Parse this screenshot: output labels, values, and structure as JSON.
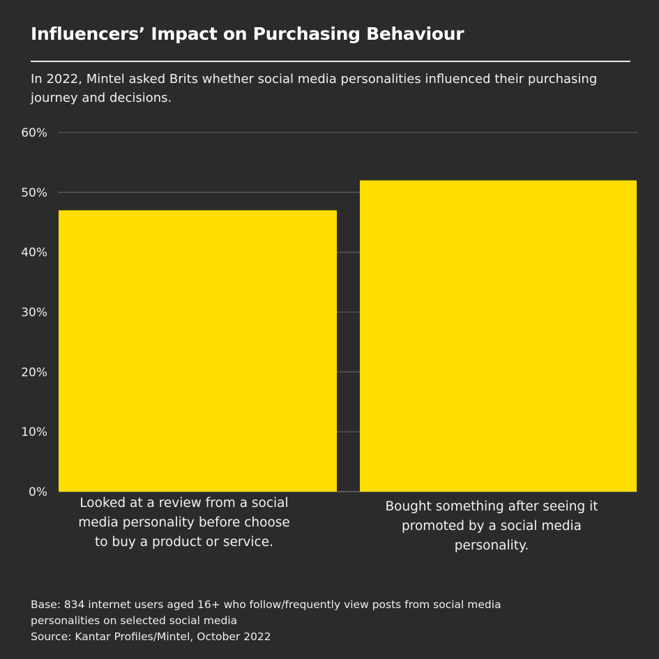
{
  "title": "Influencers’ Impact on Purchasing Behaviour",
  "subtitle": "In 2022, Mintel asked Brits whether social media personalities influenced their purchasing journey and decisions.",
  "colors": {
    "background": "#2b2b2b",
    "bar": "#FFDD00",
    "grid": "#5a5a5a"
  },
  "chart_data": {
    "type": "bar",
    "categories": [
      "Looked at a review from a social media personality before choose to buy a product or service.",
      "Bought something after seeing it promoted by a social media personality."
    ],
    "values": [
      47,
      52
    ],
    "ylim": [
      0,
      60
    ],
    "yticks": [
      0,
      10,
      20,
      30,
      40,
      50,
      60
    ],
    "ytick_labels": [
      "0%",
      "10%",
      "20%",
      "30%",
      "40%",
      "50%",
      "60%"
    ],
    "grid": true
  },
  "footer": {
    "base": "Base: 834 internet users aged 16+ who follow/frequently view posts from social media personalities on selected social media",
    "source": "Source: Kantar Profiles/Mintel, October 2022"
  }
}
